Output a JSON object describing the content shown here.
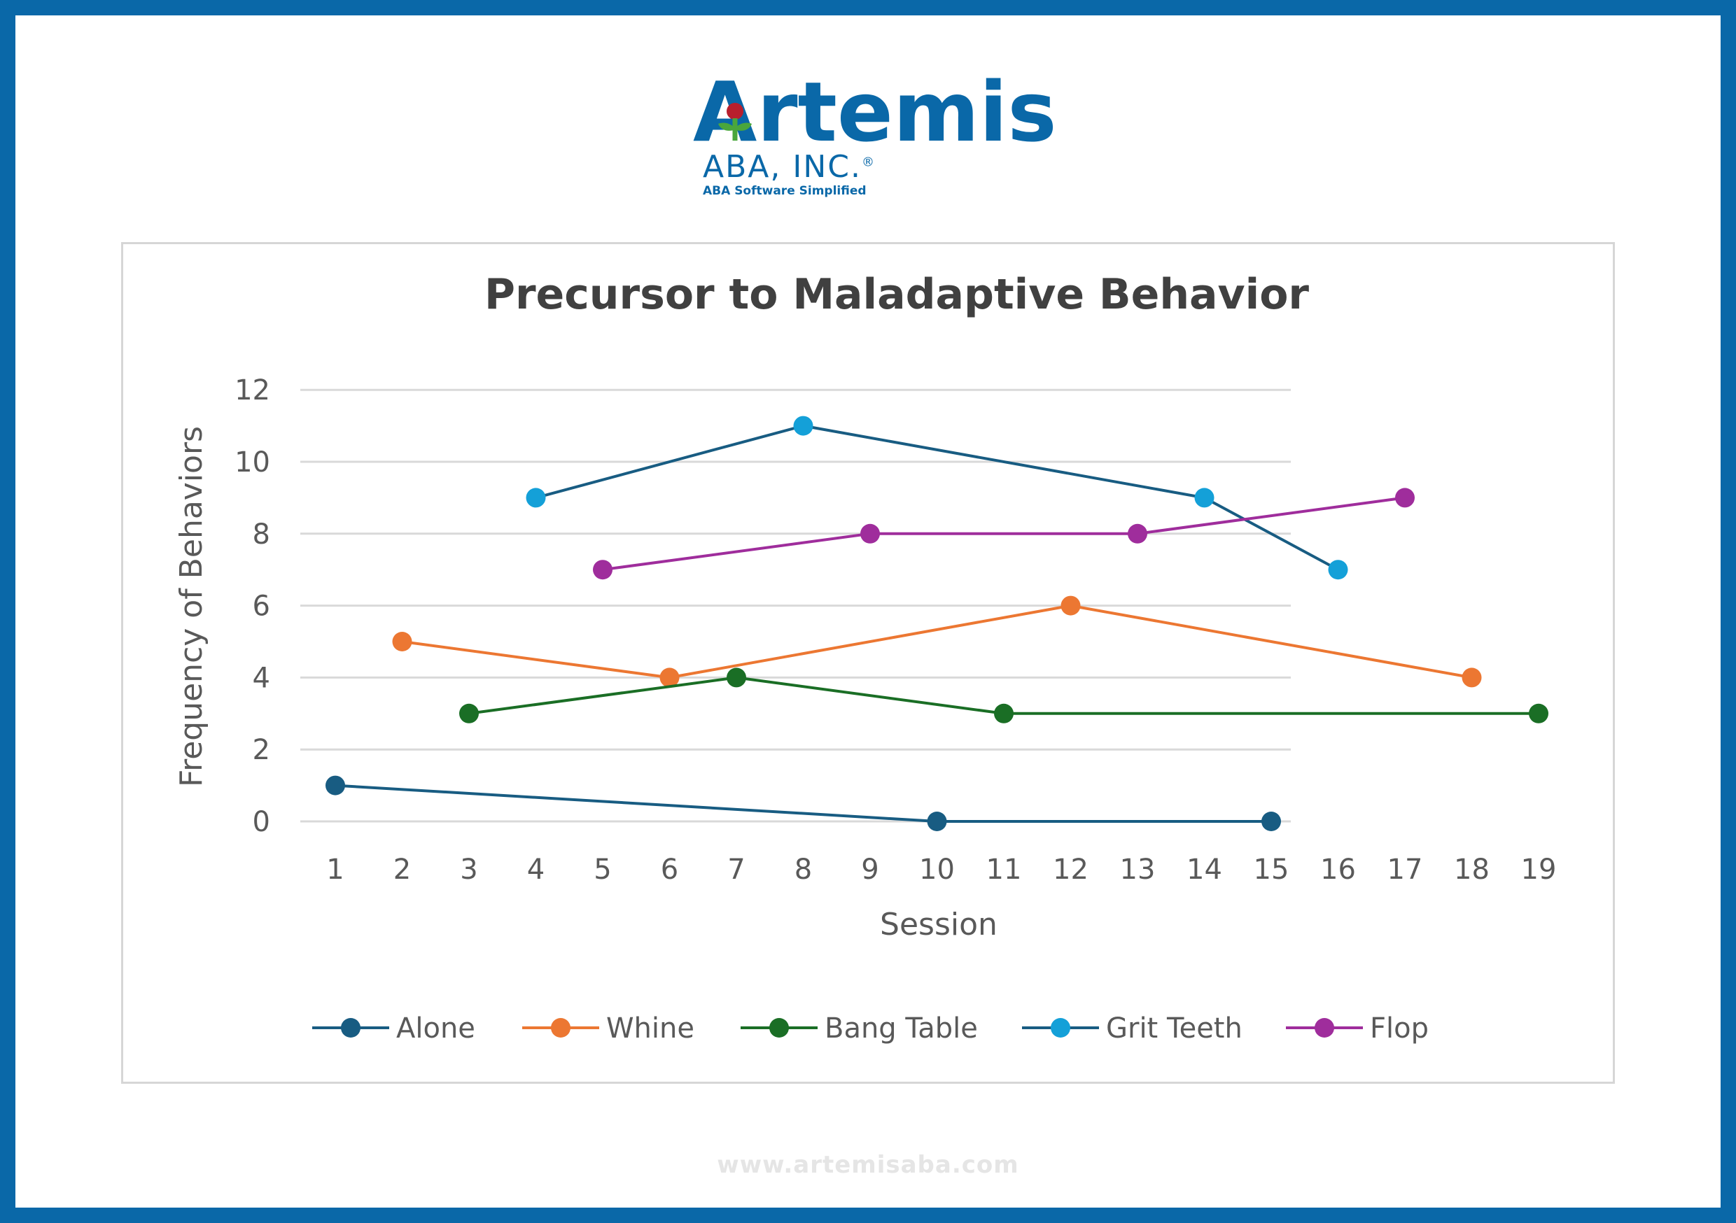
{
  "logo": {
    "name": "Artemis",
    "subtitle": "ABA, INC.",
    "registered": "®",
    "tagline": "ABA Software Simplified"
  },
  "footer": {
    "url": "www.artemisaba.com"
  },
  "colors": {
    "frame": "#0a68a8",
    "alone": "#185c82",
    "whine": "#ec7732",
    "bang_table": "#1a6e25",
    "grit_teeth": "#14a0d8",
    "grit_teeth_line": "#185c82",
    "flop": "#9f2d9c",
    "grid": "#d9d9d9",
    "title": "#404040",
    "axis_text": "#595959"
  },
  "chart_data": {
    "type": "line",
    "title": "Precursor to Maladaptive Behavior",
    "xlabel": "Session",
    "ylabel": "Frequency of Behaviors",
    "x": [
      1,
      2,
      3,
      4,
      5,
      6,
      7,
      8,
      9,
      10,
      11,
      12,
      13,
      14,
      15,
      16,
      17,
      18,
      19
    ],
    "ylim": [
      0,
      12
    ],
    "yticks": [
      0,
      2,
      4,
      6,
      8,
      10,
      12
    ],
    "grid": true,
    "legend_position": "bottom",
    "series": [
      {
        "name": "Alone",
        "points": [
          [
            1,
            1
          ],
          [
            10,
            0
          ],
          [
            15,
            0
          ]
        ]
      },
      {
        "name": "Whine",
        "points": [
          [
            2,
            5
          ],
          [
            6,
            4
          ],
          [
            12,
            6
          ],
          [
            18,
            4
          ]
        ]
      },
      {
        "name": "Bang Table",
        "points": [
          [
            3,
            3
          ],
          [
            7,
            4
          ],
          [
            11,
            3
          ],
          [
            19,
            3
          ]
        ]
      },
      {
        "name": "Grit Teeth",
        "points": [
          [
            4,
            9
          ],
          [
            8,
            11
          ],
          [
            14,
            9
          ],
          [
            16,
            7
          ]
        ]
      },
      {
        "name": "Flop",
        "points": [
          [
            5,
            7
          ],
          [
            9,
            8
          ],
          [
            13,
            8
          ],
          [
            17,
            9
          ]
        ]
      }
    ]
  }
}
